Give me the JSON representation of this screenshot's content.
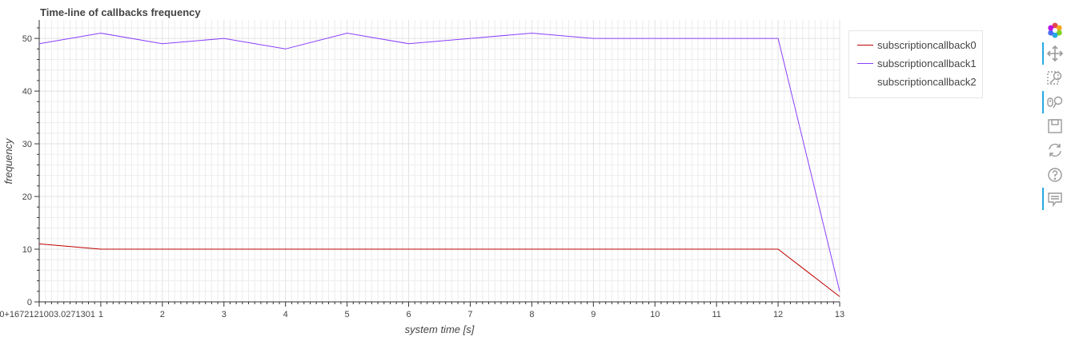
{
  "chart_data": {
    "type": "line",
    "title": "Time-line of callbacks frequency",
    "xlabel": "system time [s]",
    "ylabel": "frequency",
    "xlim": [
      0,
      13
    ],
    "ylim": [
      0,
      53.5
    ],
    "xticks": [
      0,
      1,
      2,
      3,
      4,
      5,
      6,
      7,
      8,
      9,
      10,
      11,
      12,
      13
    ],
    "xtick_labels": [
      "0+1672121003.0271301",
      "1",
      "2",
      "3",
      "4",
      "5",
      "6",
      "7",
      "8",
      "9",
      "10",
      "11",
      "12",
      "13"
    ],
    "yticks": [
      0,
      10,
      20,
      30,
      40,
      50
    ],
    "ytick_labels": [
      "0",
      "10",
      "20",
      "30",
      "40",
      "50"
    ],
    "grid": true,
    "legend_position": "outside-top-right",
    "series": [
      {
        "name": "subscriptioncallback0",
        "color": "#c00000",
        "x": [
          0,
          1,
          2,
          3,
          4,
          5,
          6,
          7,
          8,
          9,
          10,
          11,
          12,
          13
        ],
        "y": [
          11,
          10,
          10,
          10,
          10,
          10,
          10,
          10,
          10,
          10,
          10,
          10,
          10,
          1
        ]
      },
      {
        "name": "subscriptioncallback1",
        "color": "#8a3ffc",
        "x": [
          0,
          1,
          2,
          3,
          4,
          5,
          6,
          7,
          8,
          9,
          10,
          11,
          12,
          13
        ],
        "y": [
          49,
          51,
          49,
          50,
          48,
          51,
          49,
          50,
          51,
          50,
          50,
          50,
          50,
          2
        ]
      },
      {
        "name": "subscriptioncallback2",
        "color": "#ffffff",
        "x": [],
        "y": []
      }
    ]
  },
  "toolbar": {
    "tools": [
      {
        "name": "bokeh-logo-icon",
        "active": false
      },
      {
        "name": "pan-icon",
        "active": true
      },
      {
        "name": "box-zoom-icon",
        "active": false
      },
      {
        "name": "wheel-zoom-icon",
        "active": true
      },
      {
        "name": "save-icon",
        "active": false
      },
      {
        "name": "reset-icon",
        "active": false
      },
      {
        "name": "help-icon",
        "active": false
      },
      {
        "name": "hover-icon",
        "active": true
      }
    ]
  }
}
